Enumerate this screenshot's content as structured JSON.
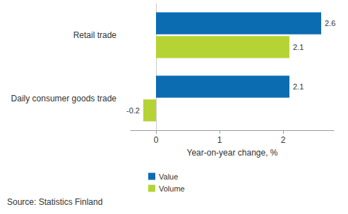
{
  "chart_data": {
    "type": "bar",
    "orientation": "horizontal",
    "categories": [
      "Retail trade",
      "Daily consumer goods trade"
    ],
    "series": [
      {
        "name": "Value",
        "color": "#0c6cb2",
        "values": [
          2.6,
          2.1
        ]
      },
      {
        "name": "Volume",
        "color": "#b5d335",
        "values": [
          2.1,
          -0.2
        ]
      }
    ],
    "x_label": "Year-on-year change, %",
    "xlim": [
      -0.4,
      2.8
    ],
    "xticks": [
      0,
      1,
      2
    ],
    "data_labels": true,
    "grid": false,
    "legend": "bottom-left",
    "source": "Source: Statistics Finland"
  }
}
